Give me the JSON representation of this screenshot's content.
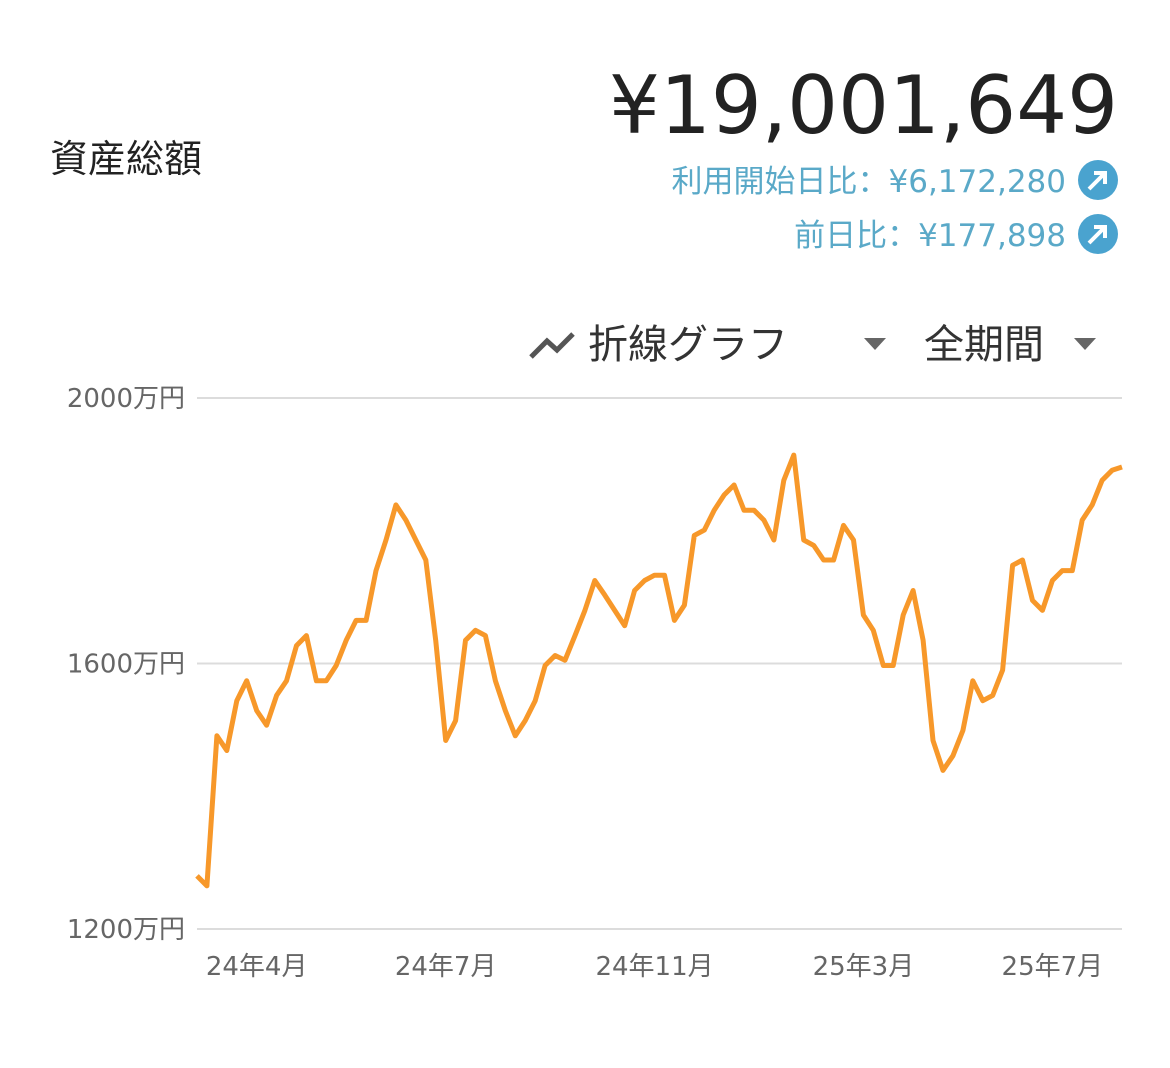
{
  "header": {
    "label": "資産総額",
    "total": "¥19,001,649",
    "since_start": "利用開始日比：¥6,172,280",
    "day_change": "前日比：¥177,898"
  },
  "controls": {
    "chart_type": "折線グラフ",
    "period": "全期間"
  },
  "chart_data": {
    "type": "line",
    "categories": [
      null,
      null,
      null,
      null,
      null,
      null,
      "24年4月",
      null,
      null,
      null,
      null,
      null,
      null,
      null,
      null,
      null,
      null,
      null,
      null,
      null,
      null,
      null,
      null,
      null,
      null,
      "24年7月",
      null,
      null,
      null,
      null,
      null,
      null,
      null,
      null,
      null,
      null,
      null,
      null,
      null,
      null,
      null,
      null,
      null,
      null,
      null,
      null,
      "24年11月",
      null,
      null,
      null,
      null,
      null,
      null,
      null,
      null,
      null,
      null,
      null,
      null,
      null,
      null,
      null,
      null,
      null,
      null,
      null,
      null,
      "25年3月",
      null,
      null,
      null,
      null,
      null,
      null,
      null,
      null,
      null,
      null,
      null,
      null,
      null,
      null,
      null,
      null,
      null,
      null,
      "25年7月",
      null,
      null,
      null,
      null,
      null,
      null,
      null
    ],
    "series": [
      {
        "color": "#f7982a",
        "values": [
          1280,
          1265,
          1491,
          1469,
          1544,
          1574,
          1529,
          1507,
          1552,
          1574,
          1627,
          1642,
          1574,
          1574,
          1597,
          1635,
          1665,
          1665,
          1740,
          1786,
          1839,
          1816,
          1786,
          1756,
          1635,
          1484,
          1514,
          1635,
          1650,
          1642,
          1574,
          1529,
          1491,
          1514,
          1544,
          1597,
          1612,
          1605,
          1642,
          1680,
          1725,
          1703,
          1680,
          1657,
          1710,
          1725,
          1733,
          1733,
          1665,
          1688,
          1793,
          1801,
          1831,
          1854,
          1869,
          1831,
          1831,
          1816,
          1786,
          1876,
          1914,
          1786,
          1778,
          1756,
          1756,
          1808,
          1786,
          1673,
          1650,
          1597,
          1597,
          1673,
          1710,
          1635,
          1484,
          1439,
          1461,
          1499,
          1574,
          1544,
          1552,
          1590,
          1748,
          1756,
          1695,
          1680,
          1725,
          1740,
          1740,
          1816,
          1839,
          1876,
          1891,
          1896
        ]
      }
    ],
    "ylim": [
      1200,
      2000
    ],
    "yticks": [
      {
        "value": 1200,
        "label": "1200万円"
      },
      {
        "value": 1600,
        "label": "1600万円"
      },
      {
        "value": 2000,
        "label": "2000万円"
      }
    ],
    "grid": true
  }
}
